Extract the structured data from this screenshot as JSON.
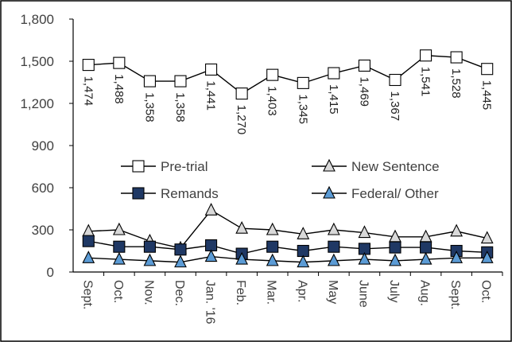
{
  "chart_data": {
    "type": "line",
    "title": "",
    "xlabel": "",
    "ylabel": "",
    "ylim": [
      0,
      1800
    ],
    "yticks": [
      "0",
      "300",
      "600",
      "900",
      "1,200",
      "1,500",
      "1,800"
    ],
    "ytick_values": [
      0,
      300,
      600,
      900,
      1200,
      1500,
      1800
    ],
    "categories": [
      "Sept.",
      "Oct.",
      "Nov.",
      "Dec.",
      "Jan. '16",
      "Feb.",
      "Mar.",
      "Apr.",
      "May",
      "June",
      "July",
      "Aug.",
      "Sept.",
      "Oct."
    ],
    "grid": false,
    "legend_position": "middle",
    "series": [
      {
        "name": "Pre-trial",
        "marker": "square",
        "color": "#ffffff",
        "values": [
          1474,
          1488,
          1358,
          1358,
          1441,
          1270,
          1403,
          1345,
          1415,
          1469,
          1367,
          1541,
          1528,
          1445
        ],
        "labels": [
          "1,474",
          "1,488",
          "1,358",
          "1,358",
          "1,441",
          "1,270",
          "1,403",
          "1,345",
          "1,415",
          "1,469",
          "1,367",
          "1,541",
          "1,528",
          "1,445"
        ]
      },
      {
        "name": "New Sentence",
        "marker": "triangle",
        "color": "#d9d9d9",
        "values": [
          290,
          300,
          220,
          170,
          440,
          310,
          300,
          270,
          300,
          280,
          250,
          250,
          290,
          240
        ]
      },
      {
        "name": "Remands",
        "marker": "square",
        "color": "#1f3864",
        "values": [
          220,
          180,
          180,
          160,
          190,
          130,
          180,
          150,
          180,
          165,
          175,
          175,
          150,
          140
        ]
      },
      {
        "name": "Federal/ Other",
        "marker": "triangle",
        "color": "#5b9bd5",
        "values": [
          100,
          90,
          80,
          70,
          110,
          90,
          80,
          70,
          80,
          90,
          80,
          90,
          100,
          100
        ]
      }
    ]
  }
}
